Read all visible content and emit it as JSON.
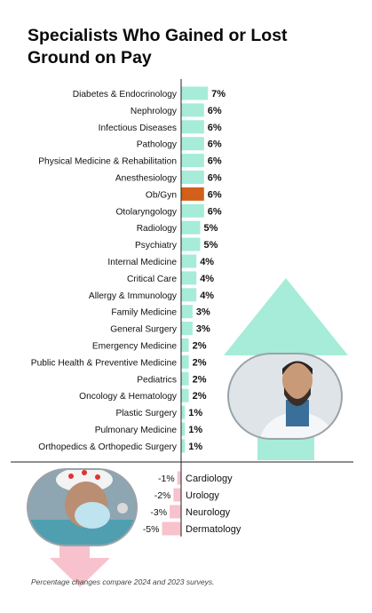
{
  "title": "Specialists Who Gained or Lost Ground on Pay",
  "footnote": "Percentage changes compare 2024 and 2023 surveys.",
  "colors": {
    "gain": "#a6ecd8",
    "highlight": "#d2601a",
    "loss": "#f7c2cc",
    "axis": "#222222",
    "arrow_up": "#a6ecd8",
    "arrow_down": "#f7c2cc"
  },
  "chart_data": {
    "type": "bar",
    "orientation": "horizontal",
    "title": "Specialists Who Gained or Lost Ground on Pay",
    "unit": "%",
    "highlight": "Ob/Gyn",
    "categories": [
      "Diabetes & Endocrinology",
      "Nephrology",
      "Infectious Diseases",
      "Pathology",
      "Physical Medicine & Rehabilitation",
      "Anesthesiology",
      "Ob/Gyn",
      "Otolaryngology",
      "Radiology",
      "Psychiatry",
      "Internal Medicine",
      "Critical Care",
      "Allergy & Immunology",
      "Family Medicine",
      "General Surgery",
      "Emergency Medicine",
      "Public Health & Preventive Medicine",
      "Pediatrics",
      "Oncology & Hematology",
      "Plastic Surgery",
      "Pulmonary Medicine",
      "Orthopedics & Orthopedic Surgery",
      "Cardiology",
      "Urology",
      "Neurology",
      "Dermatology"
    ],
    "values": [
      7,
      6,
      6,
      6,
      6,
      6,
      6,
      6,
      5,
      5,
      4,
      4,
      4,
      3,
      3,
      2,
      2,
      2,
      2,
      1,
      1,
      1,
      -1,
      -2,
      -3,
      -5
    ],
    "labels": [
      "7%",
      "6%",
      "6%",
      "6%",
      "6%",
      "6%",
      "6%",
      "6%",
      "5%",
      "5%",
      "4%",
      "4%",
      "4%",
      "3%",
      "3%",
      "2%",
      "2%",
      "2%",
      "2%",
      "1%",
      "1%",
      "1%",
      "-1%",
      "-2%",
      "-3%",
      "-5%"
    ]
  }
}
